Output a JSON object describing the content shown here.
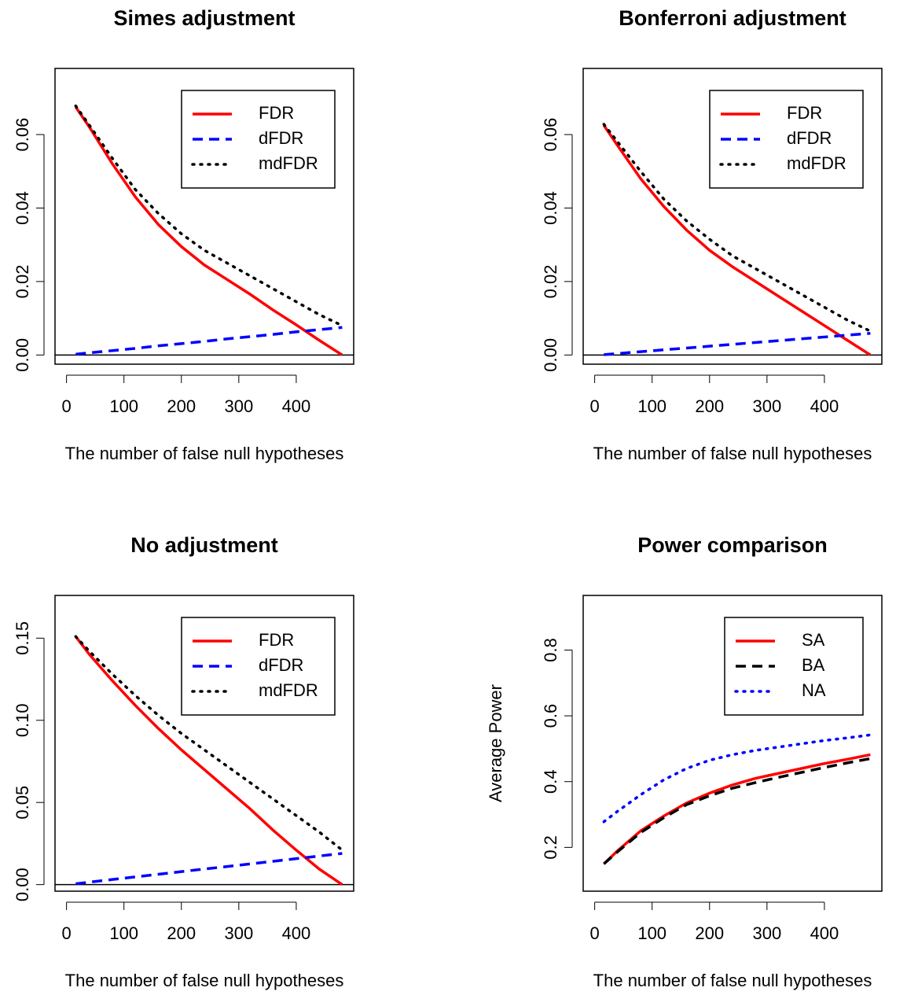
{
  "chart_data": [
    {
      "type": "line",
      "title": "Simes adjustment",
      "xlabel": "The number of false null hypotheses",
      "x": [
        16,
        40,
        80,
        120,
        160,
        200,
        240,
        280,
        320,
        360,
        400,
        440,
        480
      ],
      "series": [
        {
          "name": "FDR",
          "color": "#ff0000",
          "dash": "solid",
          "values": [
            0.0675,
            0.062,
            0.052,
            0.043,
            0.0355,
            0.0295,
            0.0245,
            0.0205,
            0.0165,
            0.0122,
            0.0082,
            0.004,
            0
          ]
        },
        {
          "name": "dFDR",
          "color": "#0000ff",
          "dash": "dashed",
          "values": [
            0.0002,
            0.0006,
            0.0012,
            0.0018,
            0.0025,
            0.0031,
            0.0037,
            0.0044,
            0.005,
            0.0056,
            0.0063,
            0.0069,
            0.0075
          ]
        },
        {
          "name": "mdFDR",
          "color": "#000000",
          "dash": "dotted",
          "values": [
            0.0678,
            0.0625,
            0.0535,
            0.045,
            0.0385,
            0.033,
            0.0285,
            0.025,
            0.0215,
            0.018,
            0.0145,
            0.011,
            0.008
          ]
        }
      ],
      "xlim": [
        -20,
        500
      ],
      "xticks": [
        0,
        100,
        200,
        300,
        400
      ],
      "ylim": [
        -0.0025,
        0.078
      ],
      "yticks": [
        {
          "value": 0,
          "label": "0.00"
        },
        {
          "value": 0.02,
          "label": "0.02"
        },
        {
          "value": 0.04,
          "label": "0.04"
        },
        {
          "value": 0.06,
          "label": "0.06"
        }
      ],
      "hline": 0,
      "legend": "topright"
    },
    {
      "type": "line",
      "title": "Bonferroni adjustment",
      "xlabel": "The number of false null hypotheses",
      "x": [
        16,
        40,
        80,
        120,
        160,
        200,
        240,
        280,
        320,
        360,
        400,
        440,
        480
      ],
      "series": [
        {
          "name": "FDR",
          "color": "#ff0000",
          "dash": "solid",
          "values": [
            0.0625,
            0.057,
            0.048,
            0.0405,
            0.034,
            0.0285,
            0.024,
            0.02,
            0.016,
            0.012,
            0.008,
            0.004,
            0
          ]
        },
        {
          "name": "dFDR",
          "color": "#0000ff",
          "dash": "dashed",
          "values": [
            0.0001,
            0.0004,
            0.0009,
            0.0014,
            0.0019,
            0.0024,
            0.0029,
            0.0034,
            0.0039,
            0.0044,
            0.0049,
            0.0054,
            0.0059
          ]
        },
        {
          "name": "mdFDR",
          "color": "#000000",
          "dash": "dotted",
          "values": [
            0.0628,
            0.058,
            0.05,
            0.0425,
            0.0365,
            0.0315,
            0.027,
            0.0235,
            0.02,
            0.0165,
            0.013,
            0.0095,
            0.0065
          ]
        }
      ],
      "xlim": [
        -20,
        500
      ],
      "xticks": [
        0,
        100,
        200,
        300,
        400
      ],
      "ylim": [
        -0.0025,
        0.078
      ],
      "yticks": [
        {
          "value": 0,
          "label": "0.00"
        },
        {
          "value": 0.02,
          "label": "0.02"
        },
        {
          "value": 0.04,
          "label": "0.04"
        },
        {
          "value": 0.06,
          "label": "0.06"
        }
      ],
      "hline": 0,
      "legend": "topright"
    },
    {
      "type": "line",
      "title": "No adjustment",
      "xlabel": "The number of false null hypotheses",
      "x": [
        16,
        40,
        80,
        120,
        160,
        200,
        240,
        280,
        320,
        360,
        400,
        440,
        480
      ],
      "series": [
        {
          "name": "FDR",
          "color": "#ff0000",
          "dash": "solid",
          "values": [
            0.151,
            0.14,
            0.124,
            0.109,
            0.095,
            0.082,
            0.07,
            0.058,
            0.046,
            0.033,
            0.021,
            0.0095,
            0
          ]
        },
        {
          "name": "dFDR",
          "color": "#0000ff",
          "dash": "dashed",
          "values": [
            0.0005,
            0.0015,
            0.0031,
            0.0047,
            0.0063,
            0.0079,
            0.0095,
            0.011,
            0.0126,
            0.0142,
            0.0158,
            0.0174,
            0.019
          ]
        },
        {
          "name": "mdFDR",
          "color": "#000000",
          "dash": "dotted",
          "values": [
            0.151,
            0.142,
            0.128,
            0.115,
            0.103,
            0.092,
            0.082,
            0.072,
            0.062,
            0.052,
            0.042,
            0.032,
            0.021
          ]
        }
      ],
      "xlim": [
        -20,
        500
      ],
      "xticks": [
        0,
        100,
        200,
        300,
        400
      ],
      "ylim": [
        -0.004,
        0.176
      ],
      "yticks": [
        {
          "value": 0,
          "label": "0.00"
        },
        {
          "value": 0.05,
          "label": "0.05"
        },
        {
          "value": 0.1,
          "label": "0.10"
        },
        {
          "value": 0.15,
          "label": "0.15"
        }
      ],
      "hline": 0,
      "legend": "topright"
    },
    {
      "type": "line",
      "title": "Power comparison",
      "xlabel": "The number of false null hypotheses",
      "ylabel": "Average Power",
      "x": [
        16,
        40,
        80,
        120,
        160,
        200,
        240,
        280,
        320,
        360,
        400,
        440,
        480
      ],
      "series": [
        {
          "name": "SA",
          "color": "#ff0000",
          "dash": "solid",
          "values": [
            0.15,
            0.19,
            0.25,
            0.295,
            0.335,
            0.365,
            0.39,
            0.41,
            0.425,
            0.44,
            0.455,
            0.468,
            0.482
          ]
        },
        {
          "name": "BA",
          "color": "#000000",
          "dash": "dashed",
          "values": [
            0.15,
            0.187,
            0.245,
            0.29,
            0.33,
            0.357,
            0.38,
            0.397,
            0.413,
            0.428,
            0.443,
            0.457,
            0.47
          ]
        },
        {
          "name": "NA",
          "color": "#0000ff",
          "dash": "dotted",
          "values": [
            0.278,
            0.31,
            0.36,
            0.405,
            0.44,
            0.465,
            0.482,
            0.495,
            0.505,
            0.515,
            0.525,
            0.533,
            0.542
          ]
        }
      ],
      "xlim": [
        -20,
        500
      ],
      "xticks": [
        0,
        100,
        200,
        300,
        400
      ],
      "ylim": [
        0.067,
        0.966
      ],
      "yticks": [
        0.2,
        0.4,
        0.6,
        0.8
      ],
      "legend": "topright"
    }
  ]
}
